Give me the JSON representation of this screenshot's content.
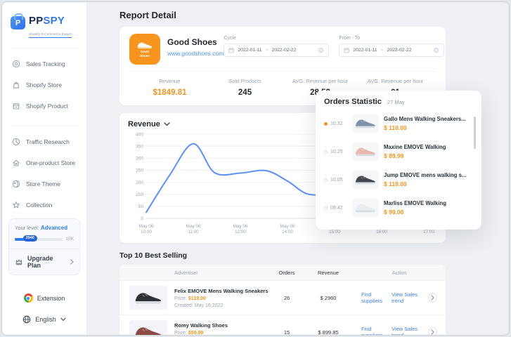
{
  "app": {
    "brand_primary": "PP",
    "brand_secondary": "SPY",
    "logo_letter": "P",
    "tagline": "Shopify E-Commerce Expert"
  },
  "sidebar": {
    "menu_top": [
      {
        "label": "Sales Tracking",
        "icon": "target-icon"
      },
      {
        "label": "Shopify Store",
        "icon": "store-icon"
      },
      {
        "label": "Shopify Product",
        "icon": "product-icon"
      }
    ],
    "menu_bottom": [
      {
        "label": "Traffic Research",
        "icon": "pie-chart-icon"
      },
      {
        "label": "One-product Store",
        "icon": "home-icon"
      },
      {
        "label": "Store Theme",
        "icon": "theme-icon"
      },
      {
        "label": "Collection",
        "icon": "star-icon"
      }
    ],
    "level_card": {
      "label": "Your level:",
      "level": "Advanced",
      "progress_value": "2940",
      "progress_max": "10K",
      "upgrade_label": "Upgrade Plan"
    },
    "extension_label": "Extension",
    "language_label": "English"
  },
  "header": {
    "title": "Report Detail"
  },
  "store_card": {
    "badge_text": "Good Shoes",
    "name": "Good Shoes",
    "url": "www.goodshoes.com",
    "cycle_label": "Cycle",
    "cycle_start": "2022-01-11",
    "cycle_sep": "~",
    "cycle_end": "2022-02-22",
    "fromto_label": "From - To",
    "fromto_start": "2022-01-11",
    "fromto_sep": "~",
    "fromto_end": "2022-02-22",
    "stats": [
      {
        "label": "Revenue",
        "value": "$1849.81"
      },
      {
        "label": "Sold Products",
        "value": "245"
      },
      {
        "label": "AVG. Revenue per hour",
        "value": "28.52"
      },
      {
        "label": "AVG. Revenue per hour",
        "value": "01"
      }
    ]
  },
  "chart_data": {
    "type": "area",
    "title": "Revenue",
    "x_tick_labels": [
      [
        "May 06",
        "10:00"
      ],
      [
        "May 06",
        "11:00"
      ],
      [
        "May 06",
        "12:00"
      ],
      [
        "May 06",
        "14:00"
      ],
      [
        "May 06",
        "15:00"
      ],
      [
        "May 06",
        "16:00"
      ],
      [
        "May 06",
        "17:00"
      ]
    ],
    "y_tick_labels": [
      "0",
      "50",
      "150",
      "200",
      "250",
      "300",
      "350",
      "400"
    ],
    "x_range": [
      0,
      6
    ],
    "points": [
      [
        0,
        25
      ],
      [
        0.5,
        230
      ],
      [
        1,
        360
      ],
      [
        1.45,
        240
      ],
      [
        2,
        238
      ],
      [
        2.55,
        248
      ],
      [
        3,
        205
      ],
      [
        3.45,
        150
      ],
      [
        4,
        165
      ],
      [
        4.6,
        255
      ],
      [
        5,
        305
      ],
      [
        5.45,
        338
      ],
      [
        6,
        252
      ]
    ],
    "line_color": "#5b8ff9",
    "fill_color": "rgba(91,143,249,0.22)",
    "grid": true,
    "legend": "none"
  },
  "orders_panel": {
    "title": "Orders Statistic",
    "date": "27 May",
    "items": [
      {
        "time": "10:32",
        "name": "Gallo Mens Walking Sneakers...",
        "price": "$ 110.00",
        "color": "#7d8fa9",
        "active": true
      },
      {
        "time": "10:25",
        "name": "Maxine EMOVE Walking",
        "price": "$ 89.99",
        "color": "#e9b7ae",
        "active": false
      },
      {
        "time": "10:05",
        "name": "Jump EMOVE mens walking s...",
        "price": "$ 119.00",
        "color": "#43464c",
        "active": false
      },
      {
        "time": "09:42",
        "name": "Marliss EMOVE Walking",
        "price": "$ 99.00",
        "color": "#e9ecef",
        "active": false
      }
    ]
  },
  "best_selling": {
    "title": "Top 10 Best Selling",
    "columns": [
      "Advertiser",
      "Orders",
      "Revenue",
      "Action"
    ],
    "rows": [
      {
        "name": "Felix EMOVE Mens Walking Sneakers",
        "price_label": "Price:",
        "price": "$119.00",
        "created_label": "Created:",
        "created": "May 16,2022",
        "orders": "26",
        "revenue": "$ 2960",
        "action_find": "Find suppliers",
        "action_trend": "View Sales trend",
        "color": "#2e3137"
      },
      {
        "name": "Romy Walking Shoes",
        "price_label": "Price:",
        "price": "$59.99",
        "created_label": "Created:",
        "created": "May 16,2022",
        "orders": "15",
        "revenue": "$ 899.85",
        "action_find": "Find suppliers",
        "action_trend": "View Sales trend",
        "color": "#8c4a46"
      }
    ]
  },
  "colors": {
    "accent_orange": "#f7941d",
    "accent_blue": "#2f7bf5",
    "link_blue": "#3f80f0",
    "chart_line": "#5b8ff9"
  }
}
